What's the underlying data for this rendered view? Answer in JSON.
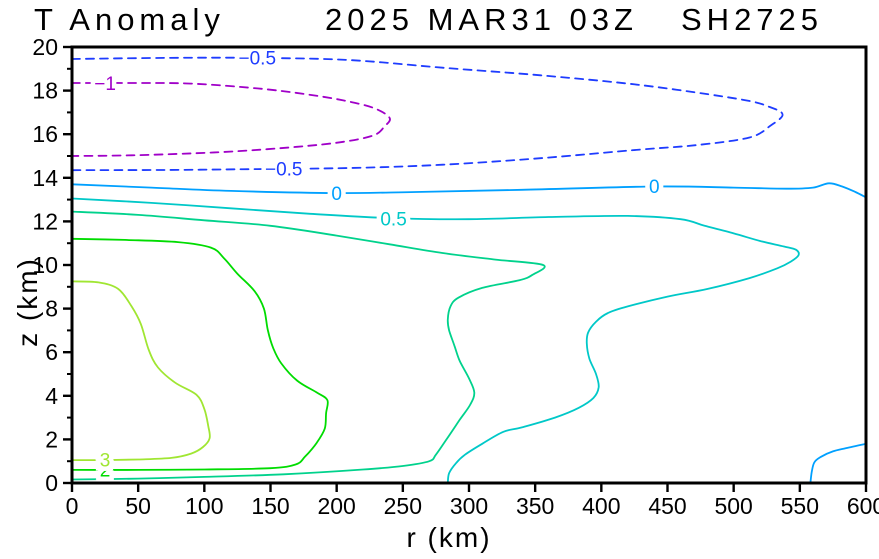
{
  "title": {
    "variable": "T Anomaly",
    "datetime": "2025 MAR31 03Z",
    "storm_id": "SH2725"
  },
  "chart_data": {
    "type": "contour",
    "title": "T Anomaly",
    "subtitle": "2025 MAR31 03Z SH2725",
    "xlabel": "r (km)",
    "ylabel": "z (km)",
    "xlim": [
      0,
      600
    ],
    "ylim": [
      0,
      20
    ],
    "xticks": [
      0,
      50,
      100,
      150,
      200,
      250,
      300,
      350,
      400,
      450,
      500,
      550,
      600
    ],
    "yticks_major": [
      0,
      2,
      4,
      6,
      8,
      10,
      12,
      14,
      16,
      18,
      20
    ],
    "yticks_minor": [
      1,
      3,
      5,
      7,
      9,
      11,
      13,
      15,
      17,
      19
    ],
    "grid": false,
    "frame_color": "#000000",
    "contours": [
      {
        "level": -1,
        "color": "#A000C8",
        "dashed": true,
        "labels": [
          {
            "text": "-1",
            "r": 25,
            "z": 18.32
          }
        ],
        "points": [
          [
            0,
            18.35
          ],
          [
            45,
            18.35
          ],
          [
            90,
            18.32
          ],
          [
            140,
            18.1
          ],
          [
            175,
            17.85
          ],
          [
            205,
            17.55
          ],
          [
            228,
            17.2
          ],
          [
            240,
            16.75
          ],
          [
            236,
            16.35
          ],
          [
            228,
            15.95
          ],
          [
            205,
            15.65
          ],
          [
            170,
            15.42
          ],
          [
            125,
            15.22
          ],
          [
            90,
            15.12
          ],
          [
            45,
            15.03
          ],
          [
            0,
            15.0
          ]
        ]
      },
      {
        "level": -0.5,
        "color": "#1E3CFF",
        "dashed": true,
        "labels": [
          {
            "text": "-0.5",
            "r": 140,
            "z": 19.5
          },
          {
            "text": "-0.5",
            "r": 160,
            "z": 14.4
          }
        ],
        "points": [
          [
            0,
            19.45
          ],
          [
            70,
            19.5
          ],
          [
            140,
            19.5
          ],
          [
            210,
            19.4
          ],
          [
            280,
            19.05
          ],
          [
            354,
            18.7
          ],
          [
            430,
            18.25
          ],
          [
            505,
            17.6
          ],
          [
            527,
            17.25
          ],
          [
            537,
            16.9
          ],
          [
            528,
            16.4
          ],
          [
            512,
            15.85
          ],
          [
            472,
            15.5
          ],
          [
            430,
            15.3
          ],
          [
            354,
            14.9
          ],
          [
            280,
            14.6
          ],
          [
            210,
            14.45
          ],
          [
            140,
            14.4
          ],
          [
            70,
            14.36
          ],
          [
            0,
            14.35
          ]
        ]
      },
      {
        "level": 0,
        "color": "#00A0FF",
        "dashed": false,
        "labels": [
          {
            "text": "0",
            "r": 200,
            "z": 13.28
          },
          {
            "text": "0",
            "r": 440,
            "z": 13.6
          }
        ],
        "points": [
          [
            0,
            13.7
          ],
          [
            60,
            13.55
          ],
          [
            120,
            13.4
          ],
          [
            200,
            13.3
          ],
          [
            260,
            13.35
          ],
          [
            340,
            13.45
          ],
          [
            440,
            13.6
          ],
          [
            500,
            13.55
          ],
          [
            540,
            13.5
          ],
          [
            560,
            13.55
          ],
          [
            572,
            13.75
          ],
          [
            582,
            13.6
          ],
          [
            592,
            13.35
          ],
          [
            600,
            13.1
          ]
        ]
      },
      {
        "level": 0,
        "color": "#00A0FF",
        "dashed": false,
        "labels": [],
        "points": [
          [
            558,
            0
          ],
          [
            559,
            0.5
          ],
          [
            561,
            0.95
          ],
          [
            566,
            1.2
          ],
          [
            575,
            1.45
          ],
          [
            585,
            1.6
          ],
          [
            600,
            1.8
          ]
        ]
      },
      {
        "level": 0.5,
        "color": "#00C8C8",
        "dashed": false,
        "labels": [
          {
            "text": "0.5",
            "r": 243,
            "z": 12.12
          }
        ],
        "points": [
          [
            0,
            13.05
          ],
          [
            60,
            12.85
          ],
          [
            120,
            12.6
          ],
          [
            180,
            12.35
          ],
          [
            240,
            12.15
          ],
          [
            300,
            12.1
          ],
          [
            360,
            12.2
          ],
          [
            420,
            12.25
          ],
          [
            460,
            12.1
          ],
          [
            478,
            11.8
          ],
          [
            500,
            11.45
          ],
          [
            520,
            11.1
          ],
          [
            538,
            10.85
          ],
          [
            547,
            10.7
          ],
          [
            549,
            10.45
          ],
          [
            543,
            10.15
          ],
          [
            533,
            9.85
          ],
          [
            512,
            9.4
          ],
          [
            480,
            8.9
          ],
          [
            450,
            8.55
          ],
          [
            420,
            8.1
          ],
          [
            405,
            7.8
          ],
          [
            396,
            7.4
          ],
          [
            390,
            6.9
          ],
          [
            389,
            6.4
          ],
          [
            391,
            5.7
          ],
          [
            396,
            5.0
          ],
          [
            398,
            4.4
          ],
          [
            394,
            3.9
          ],
          [
            383,
            3.45
          ],
          [
            365,
            3.0
          ],
          [
            340,
            2.55
          ],
          [
            326,
            2.35
          ],
          [
            310,
            1.8
          ],
          [
            297,
            1.3
          ],
          [
            290,
            0.9
          ],
          [
            285,
            0.45
          ],
          [
            284,
            0
          ]
        ]
      },
      {
        "level": 1,
        "color": "#00D28C",
        "dashed": false,
        "labels": [],
        "points": [
          [
            0,
            12.45
          ],
          [
            50,
            12.3
          ],
          [
            100,
            12.05
          ],
          [
            150,
            11.8
          ],
          [
            200,
            11.35
          ],
          [
            240,
            10.95
          ],
          [
            280,
            10.55
          ],
          [
            320,
            10.25
          ],
          [
            356,
            10.0
          ],
          [
            348,
            9.55
          ],
          [
            338,
            9.3
          ],
          [
            310,
            8.95
          ],
          [
            292,
            8.5
          ],
          [
            286,
            8.1
          ],
          [
            284,
            7.5
          ],
          [
            285,
            7.0
          ],
          [
            289,
            6.3
          ],
          [
            293,
            5.6
          ],
          [
            300,
            4.8
          ],
          [
            304,
            4.15
          ],
          [
            301,
            3.6
          ],
          [
            293,
            2.9
          ],
          [
            283,
            2.0
          ],
          [
            275,
            1.3
          ],
          [
            270,
            1.0
          ],
          [
            250,
            0.78
          ],
          [
            220,
            0.62
          ],
          [
            160,
            0.4
          ],
          [
            100,
            0.28
          ],
          [
            50,
            0.2
          ],
          [
            0,
            0.16
          ]
        ]
      },
      {
        "level": 2,
        "color": "#00DC00",
        "dashed": false,
        "labels": [
          {
            "text": "2",
            "r": 25,
            "z": 0.6
          }
        ],
        "points": [
          [
            0,
            11.2
          ],
          [
            40,
            11.15
          ],
          [
            80,
            11.05
          ],
          [
            105,
            10.8
          ],
          [
            115,
            10.3
          ],
          [
            125,
            9.6
          ],
          [
            138,
            8.8
          ],
          [
            145,
            8.0
          ],
          [
            148,
            7.0
          ],
          [
            152,
            6.2
          ],
          [
            158,
            5.5
          ],
          [
            170,
            4.7
          ],
          [
            185,
            4.15
          ],
          [
            193,
            3.8
          ],
          [
            192,
            3.2
          ],
          [
            191,
            2.5
          ],
          [
            185,
            1.85
          ],
          [
            176,
            1.2
          ],
          [
            169,
            0.85
          ],
          [
            150,
            0.68
          ],
          [
            100,
            0.62
          ],
          [
            50,
            0.6
          ],
          [
            0,
            0.6
          ]
        ]
      },
      {
        "level": 3,
        "color": "#A0E632",
        "dashed": false,
        "labels": [
          {
            "text": "3",
            "r": 25,
            "z": 1.05
          }
        ],
        "points": [
          [
            0,
            9.25
          ],
          [
            20,
            9.2
          ],
          [
            35,
            8.9
          ],
          [
            45,
            8.1
          ],
          [
            52,
            7.3
          ],
          [
            58,
            6.1
          ],
          [
            65,
            5.3
          ],
          [
            78,
            4.6
          ],
          [
            94,
            4.05
          ],
          [
            100,
            3.4
          ],
          [
            103,
            2.6
          ],
          [
            104,
            2.05
          ],
          [
            99,
            1.65
          ],
          [
            90,
            1.35
          ],
          [
            75,
            1.15
          ],
          [
            50,
            1.08
          ],
          [
            25,
            1.05
          ],
          [
            0,
            1.05
          ]
        ]
      }
    ]
  }
}
